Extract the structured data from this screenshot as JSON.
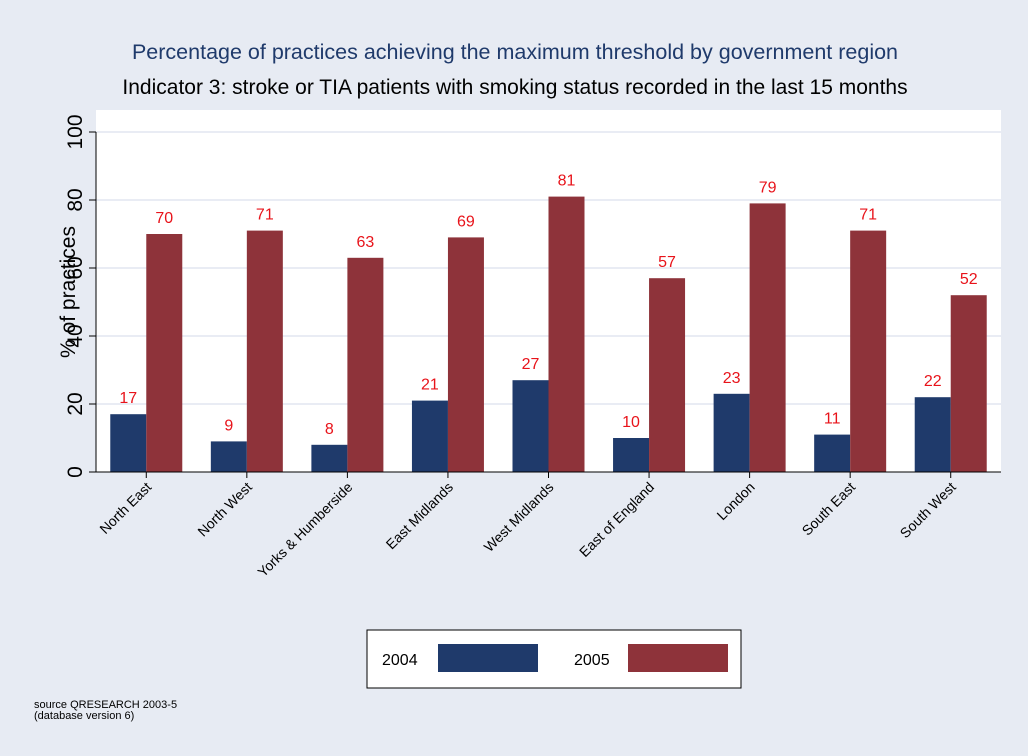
{
  "colors": {
    "background": "#e7ebf3",
    "plot_background": "#ffffff",
    "series_2004": "#1f3a6b",
    "series_2005": "#8e333a",
    "data_label": "#e8131a",
    "title": "#1f3a6b",
    "gridline": "#e2e6f0",
    "axis": "#000000"
  },
  "chart_data": {
    "type": "bar",
    "title": "Percentage of practices achieving the maximum threshold by government region",
    "subtitle": "Indicator 3: stroke or TIA patients with smoking status recorded in the last 15 months",
    "xlabel": "",
    "ylabel": "% of practices",
    "ylim": [
      0,
      100
    ],
    "yticks": [
      0,
      20,
      40,
      60,
      80,
      100
    ],
    "grid": true,
    "legend_position": "bottom",
    "categories": [
      "North East",
      "North West",
      "Yorks & Humberside",
      "East Midlands",
      "West Midlands",
      "East of England",
      "London",
      "South East",
      "South West"
    ],
    "series": [
      {
        "name": "2004",
        "values": [
          17,
          9,
          8,
          21,
          27,
          10,
          23,
          11,
          22
        ]
      },
      {
        "name": "2005",
        "values": [
          70,
          71,
          63,
          69,
          81,
          57,
          79,
          71,
          52
        ]
      }
    ],
    "note": [
      "source QRESEARCH 2003-5",
      "(database version 6)"
    ]
  }
}
